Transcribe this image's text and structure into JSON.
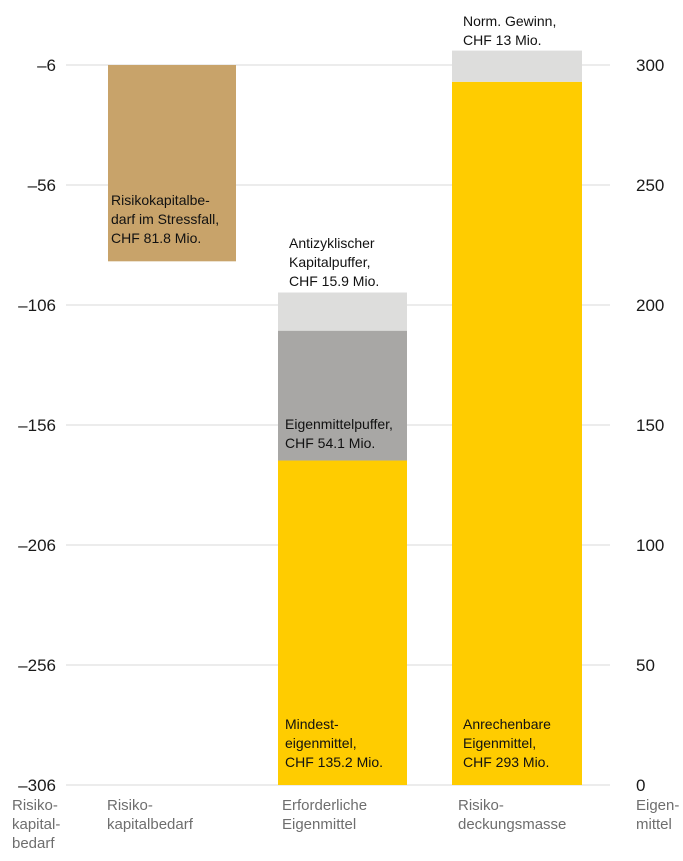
{
  "chart_data": {
    "type": "bar",
    "stacked": true,
    "grid": true,
    "colors": {
      "risk_capital": "#C8A36A",
      "mindest": "#FFCC00",
      "eigenmittelpuffer": "#A8A7A5",
      "light_grey": "#DDDDDC",
      "gridline": "#D9D9D9"
    },
    "left_axis": {
      "label": [
        "Risiko-",
        "kapital-",
        "bedarf"
      ],
      "ticks": [
        "–6",
        "–56",
        "–106",
        "–156",
        "–206",
        "–256",
        "–306"
      ],
      "tick_values": [
        -6,
        -56,
        -106,
        -156,
        -206,
        -256,
        -306
      ],
      "range": [
        -306,
        -6
      ]
    },
    "right_axis": {
      "label": [
        "Eigen-",
        "mittel"
      ],
      "ticks": [
        "300",
        "250",
        "200",
        "150",
        "100",
        "50",
        "0"
      ],
      "tick_values": [
        300,
        250,
        200,
        150,
        100,
        50,
        0
      ],
      "range": [
        0,
        300
      ]
    },
    "categories": [
      {
        "label": [
          "Risiko-",
          "kapitalbedarf"
        ],
        "axis": "left",
        "segments": [
          {
            "name": "Risikokapitalbedarf im Stressfall",
            "value": 81.8,
            "color": "risk_capital",
            "label": [
              "Risikokapitalbe-",
              "darf im Stressfall,",
              "CHF 81.8 Mio."
            ]
          }
        ]
      },
      {
        "label": [
          "Erforderliche",
          "Eigenmittel"
        ],
        "axis": "right",
        "segments": [
          {
            "name": "Mindesteigenmittel",
            "value": 135.2,
            "color": "mindest",
            "label": [
              "Mindest-",
              "eigenmittel,",
              "CHF 135.2 Mio."
            ]
          },
          {
            "name": "Eigenmittelpuffer",
            "value": 54.1,
            "color": "eigenmittelpuffer",
            "label": [
              "Eigenmittelpuffer,",
              "CHF 54.1 Mio."
            ]
          },
          {
            "name": "Antizyklischer Kapitalpuffer",
            "value": 15.9,
            "color": "light_grey",
            "label": [
              "Antizyklischer",
              "Kapitalpuffer,",
              "CHF 15.9 Mio."
            ]
          }
        ]
      },
      {
        "label": [
          "Risiko-",
          "deckungsmasse"
        ],
        "axis": "right",
        "segments": [
          {
            "name": "Anrechenbare Eigenmittel",
            "value": 293,
            "color": "mindest",
            "label": [
              "Anrechenbare",
              "Eigenmittel,",
              "CHF 293 Mio."
            ]
          },
          {
            "name": "Norm. Gewinn",
            "value": 13,
            "color": "light_grey",
            "label": [
              "Norm. Gewinn,",
              "CHF 13 Mio."
            ]
          }
        ]
      }
    ]
  }
}
